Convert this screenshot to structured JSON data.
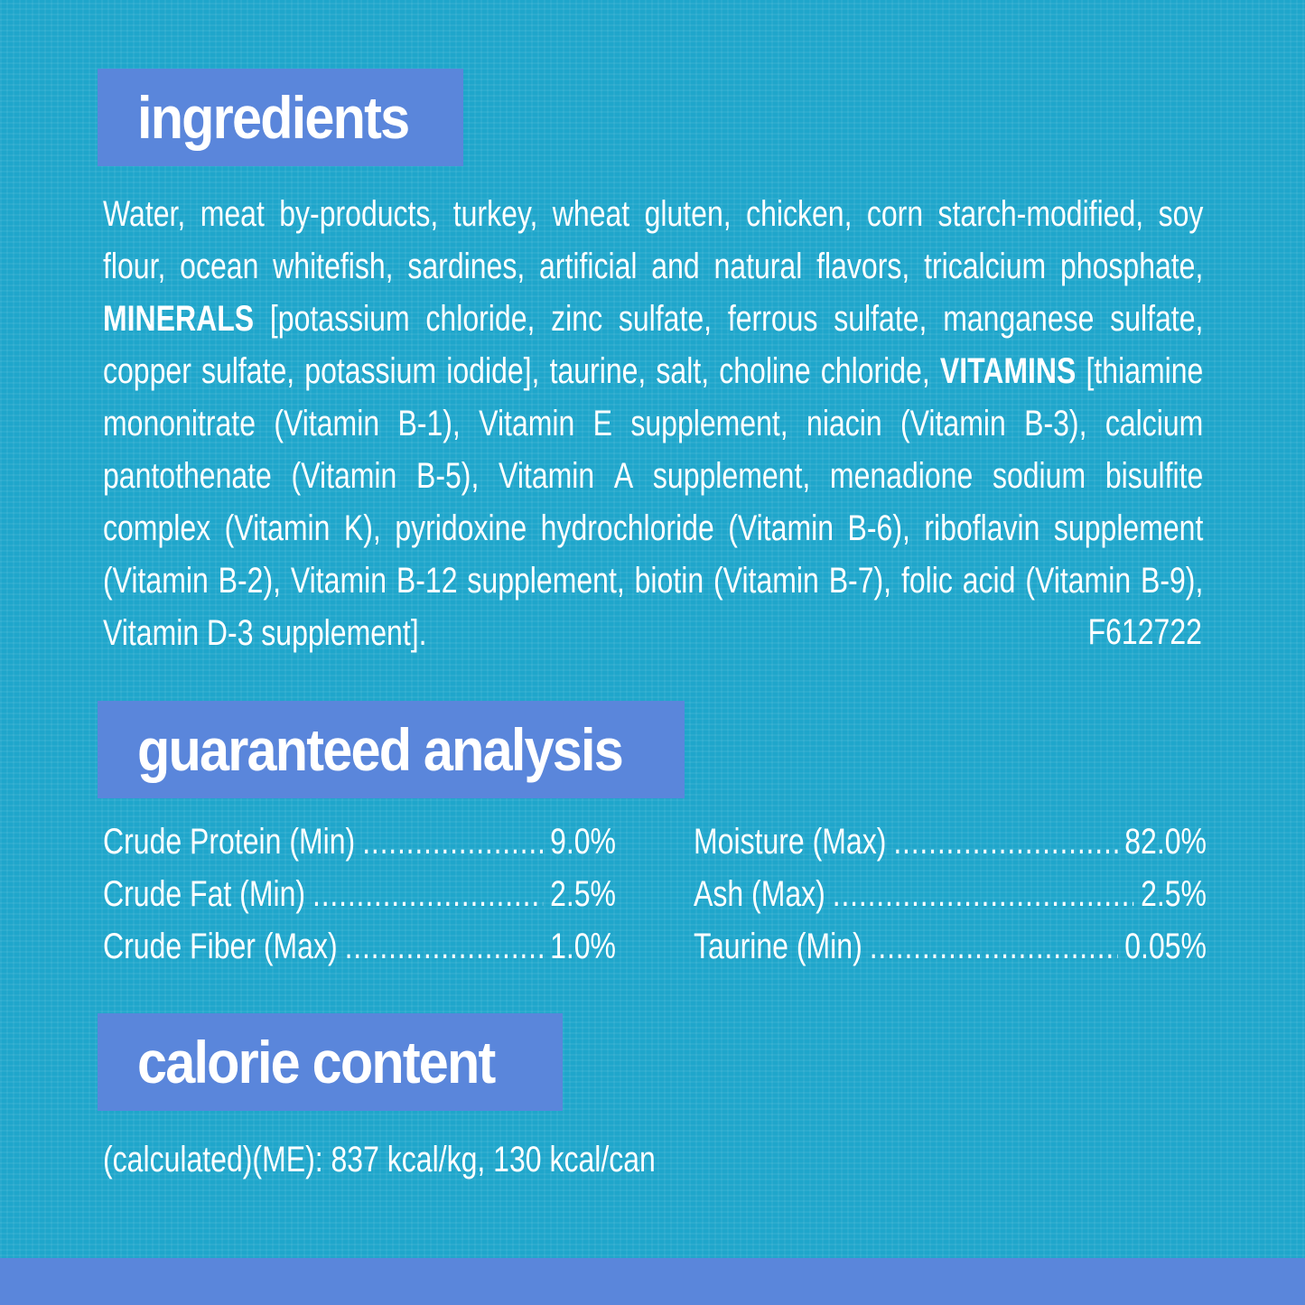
{
  "headings": {
    "ingredients": "ingredients",
    "analysis": "guaranteed analysis",
    "calorie": "calorie content"
  },
  "ingredient_lines": [
    "Water, meat by-products, turkey, wheat gluten, chicken, corn starch-modified, soy",
    "flour, ocean whitefish, sardines, artificial and natural flavors, tricalcium phosphate,",
    "MINERALS [potassium chloride, zinc sulfate, ferrous sulfate, manganese sulfate,",
    "copper sulfate, potassium iodide], taurine, salt, choline chloride, VITAMINS [thiamine",
    "mononitrate (Vitamin B-1), Vitamin E supplement, niacin (Vitamin B-3), calcium",
    "pantothenate (Vitamin B-5), Vitamin A supplement, menadione sodium bisulfite",
    "complex (Vitamin K), pyridoxine hydrochloride (Vitamin B-6), riboflavin supplement",
    "(Vitamin B-2), Vitamin B-12 supplement, biotin (Vitamin B-7), folic acid (Vitamin B-9),",
    "Vitamin D-3 supplement]."
  ],
  "bold_terms": [
    "MINERALS",
    "VITAMINS"
  ],
  "code": "F612722",
  "analysis": [
    {
      "name": "Crude Protein (Min)",
      "value": "9.0%"
    },
    {
      "name": "Crude Fat (Min)",
      "value": "2.5%"
    },
    {
      "name": "Crude Fiber (Max)",
      "value": "1.0%"
    },
    {
      "name": "Moisture (Max)",
      "value": "82.0%"
    },
    {
      "name": "Ash (Max)",
      "value": "2.5%"
    },
    {
      "name": "Taurine (Min)",
      "value": "0.05%"
    }
  ],
  "calorie_text": "(calculated)(ME): 837 kcal/kg, 130 kcal/can",
  "colors": {
    "background": "#1fa6cb",
    "label": "#5a86db",
    "text": "#ffffff"
  }
}
